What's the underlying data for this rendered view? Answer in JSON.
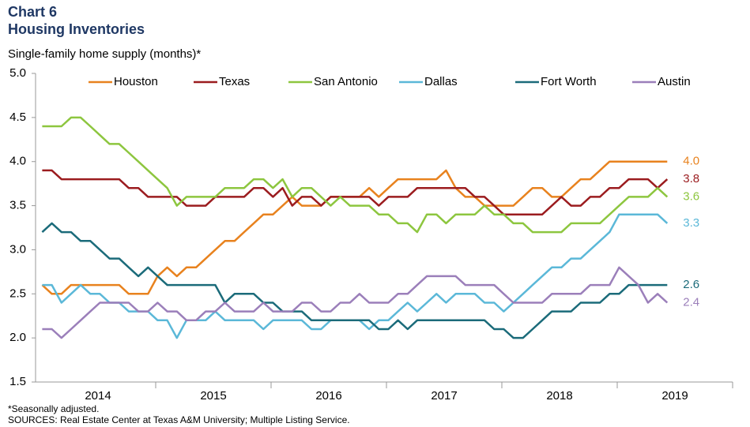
{
  "chart_data": {
    "type": "line",
    "title": "Chart 6",
    "subtitle": "Housing Inventories",
    "y_axis_label": "Single-family home supply (months)*",
    "notes": [
      "*Seasonally adjusted.",
      "SOURCES: Real Estate Center at Texas A&M University; Multiple Listing Service."
    ],
    "year_labels": [
      "2014",
      "2015",
      "2016",
      "2017",
      "2018",
      "2019"
    ],
    "ylim": [
      1.5,
      5.0
    ],
    "yticks": [
      1.5,
      {
        "value": 2.0,
        "label": "2.0"
      },
      2.5,
      {
        "value": 3.0,
        "label": "3.0"
      },
      3.5,
      {
        "value": 4.0,
        "label": "4.0"
      },
      4.5,
      {
        "value": 5.0,
        "label": "5.0"
      }
    ],
    "legend": "top",
    "series": [
      {
        "name": "Houston",
        "color": "#e8821e",
        "end_label": "4.0",
        "values": [
          2.6,
          2.5,
          2.5,
          2.6,
          2.6,
          2.6,
          2.6,
          2.6,
          2.6,
          2.5,
          2.5,
          2.5,
          2.7,
          2.8,
          2.7,
          2.8,
          2.8,
          2.9,
          3.0,
          3.1,
          3.1,
          3.2,
          3.3,
          3.4,
          3.4,
          3.5,
          3.6,
          3.5,
          3.5,
          3.5,
          3.6,
          3.6,
          3.6,
          3.6,
          3.7,
          3.6,
          3.7,
          3.8,
          3.8,
          3.8,
          3.8,
          3.8,
          3.9,
          3.7,
          3.6,
          3.6,
          3.5,
          3.5,
          3.5,
          3.5,
          3.6,
          3.7,
          3.7,
          3.6,
          3.6,
          3.7,
          3.8,
          3.8,
          3.9,
          4.0,
          4.0,
          4.0,
          4.0,
          4.0,
          4.0,
          4.0
        ]
      },
      {
        "name": "Texas",
        "color": "#9b1c1f",
        "end_label": "3.8",
        "values": [
          3.9,
          3.9,
          3.8,
          3.8,
          3.8,
          3.8,
          3.8,
          3.8,
          3.8,
          3.7,
          3.7,
          3.6,
          3.6,
          3.6,
          3.6,
          3.5,
          3.5,
          3.5,
          3.6,
          3.6,
          3.6,
          3.6,
          3.7,
          3.7,
          3.6,
          3.7,
          3.5,
          3.6,
          3.6,
          3.5,
          3.6,
          3.6,
          3.6,
          3.6,
          3.6,
          3.5,
          3.6,
          3.6,
          3.6,
          3.7,
          3.7,
          3.7,
          3.7,
          3.7,
          3.7,
          3.6,
          3.6,
          3.5,
          3.4,
          3.4,
          3.4,
          3.4,
          3.4,
          3.5,
          3.6,
          3.5,
          3.5,
          3.6,
          3.6,
          3.7,
          3.7,
          3.8,
          3.8,
          3.8,
          3.7,
          3.8
        ]
      },
      {
        "name": "San Antonio",
        "color": "#8dc63f",
        "end_label": "3.6",
        "values": [
          4.4,
          4.4,
          4.4,
          4.5,
          4.5,
          4.4,
          4.3,
          4.2,
          4.2,
          4.1,
          4.0,
          3.9,
          3.8,
          3.7,
          3.5,
          3.6,
          3.6,
          3.6,
          3.6,
          3.7,
          3.7,
          3.7,
          3.8,
          3.8,
          3.7,
          3.8,
          3.6,
          3.7,
          3.7,
          3.6,
          3.5,
          3.6,
          3.5,
          3.5,
          3.5,
          3.4,
          3.4,
          3.3,
          3.3,
          3.2,
          3.4,
          3.4,
          3.3,
          3.4,
          3.4,
          3.4,
          3.5,
          3.4,
          3.4,
          3.3,
          3.3,
          3.2,
          3.2,
          3.2,
          3.2,
          3.3,
          3.3,
          3.3,
          3.3,
          3.4,
          3.5,
          3.6,
          3.6,
          3.6,
          3.7,
          3.6
        ]
      },
      {
        "name": "Dallas",
        "color": "#5bb8d8",
        "end_label": "3.3",
        "values": [
          2.6,
          2.6,
          2.4,
          2.5,
          2.6,
          2.5,
          2.5,
          2.4,
          2.4,
          2.3,
          2.3,
          2.3,
          2.2,
          2.2,
          2.0,
          2.2,
          2.2,
          2.2,
          2.3,
          2.2,
          2.2,
          2.2,
          2.2,
          2.1,
          2.2,
          2.2,
          2.2,
          2.2,
          2.1,
          2.1,
          2.2,
          2.2,
          2.2,
          2.2,
          2.1,
          2.2,
          2.2,
          2.3,
          2.4,
          2.3,
          2.4,
          2.5,
          2.4,
          2.5,
          2.5,
          2.5,
          2.4,
          2.4,
          2.3,
          2.4,
          2.5,
          2.6,
          2.7,
          2.8,
          2.8,
          2.9,
          2.9,
          3.0,
          3.1,
          3.2,
          3.4,
          3.4,
          3.4,
          3.4,
          3.4,
          3.3
        ]
      },
      {
        "name": "Fort Worth",
        "color": "#1b6b7a",
        "end_label": "2.6",
        "values": [
          3.2,
          3.3,
          3.2,
          3.2,
          3.1,
          3.1,
          3.0,
          2.9,
          2.9,
          2.8,
          2.7,
          2.8,
          2.7,
          2.6,
          2.6,
          2.6,
          2.6,
          2.6,
          2.6,
          2.4,
          2.5,
          2.5,
          2.5,
          2.4,
          2.4,
          2.3,
          2.3,
          2.3,
          2.2,
          2.2,
          2.2,
          2.2,
          2.2,
          2.2,
          2.2,
          2.1,
          2.1,
          2.2,
          2.1,
          2.2,
          2.2,
          2.2,
          2.2,
          2.2,
          2.2,
          2.2,
          2.2,
          2.1,
          2.1,
          2.0,
          2.0,
          2.1,
          2.2,
          2.3,
          2.3,
          2.3,
          2.4,
          2.4,
          2.4,
          2.5,
          2.5,
          2.6,
          2.6,
          2.6,
          2.6,
          2.6
        ]
      },
      {
        "name": "Austin",
        "color": "#9b7fba",
        "end_label": "2.4",
        "values": [
          2.1,
          2.1,
          2.0,
          2.1,
          2.2,
          2.3,
          2.4,
          2.4,
          2.4,
          2.4,
          2.3,
          2.3,
          2.4,
          2.3,
          2.3,
          2.2,
          2.2,
          2.3,
          2.3,
          2.4,
          2.3,
          2.3,
          2.3,
          2.4,
          2.3,
          2.3,
          2.3,
          2.4,
          2.4,
          2.3,
          2.3,
          2.4,
          2.4,
          2.5,
          2.4,
          2.4,
          2.4,
          2.5,
          2.5,
          2.6,
          2.7,
          2.7,
          2.7,
          2.7,
          2.6,
          2.6,
          2.6,
          2.6,
          2.5,
          2.4,
          2.4,
          2.4,
          2.4,
          2.5,
          2.5,
          2.5,
          2.5,
          2.6,
          2.6,
          2.6,
          2.8,
          2.7,
          2.6,
          2.4,
          2.5,
          2.4
        ]
      }
    ]
  }
}
